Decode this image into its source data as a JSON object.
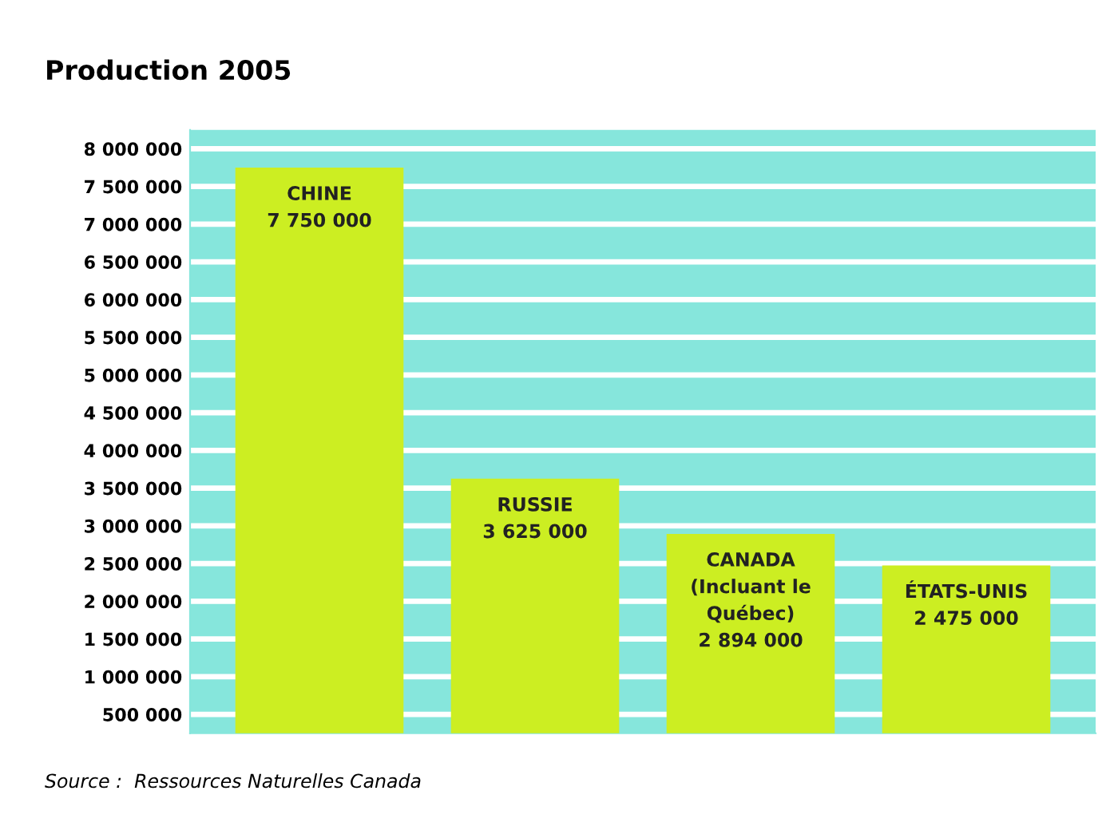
{
  "chart_data": {
    "type": "bar",
    "title": "Production 2005",
    "categories": [
      "CHINE",
      "RUSSIE",
      "CANADA\n(Incluant le\nQuébec)",
      "ÉTATS-UNIS"
    ],
    "values": [
      7750000,
      3625000,
      2894000,
      2475000
    ],
    "value_labels": [
      "7 750 000",
      "3 625 000",
      "2 894 000",
      "2 475 000"
    ],
    "color": "#ccee22",
    "ylim": [
      250000,
      8250000
    ],
    "yticks": [
      {
        "value": 500000,
        "label": "500 000"
      },
      {
        "value": 1000000,
        "label": "1 000 000"
      },
      {
        "value": 1500000,
        "label": "1 500 000"
      },
      {
        "value": 2000000,
        "label": "2 000 000"
      },
      {
        "value": 2500000,
        "label": "2 500 000"
      },
      {
        "value": 3000000,
        "label": "3 000 000"
      },
      {
        "value": 3500000,
        "label": "3 500 000"
      },
      {
        "value": 4000000,
        "label": "4 000 000"
      },
      {
        "value": 4500000,
        "label": "4 500 000"
      },
      {
        "value": 5000000,
        "label": "5 000 000"
      },
      {
        "value": 5500000,
        "label": "5 500 000"
      },
      {
        "value": 6000000,
        "label": "6 000 000"
      },
      {
        "value": 6500000,
        "label": "6 500 000"
      },
      {
        "value": 7000000,
        "label": "7 000 000"
      },
      {
        "value": 7500000,
        "label": "7 500 000"
      },
      {
        "value": 8000000,
        "label": "8 000 000"
      }
    ],
    "grid": "y",
    "annotations": [
      "Source :  Ressources Naturelles Canada"
    ]
  }
}
